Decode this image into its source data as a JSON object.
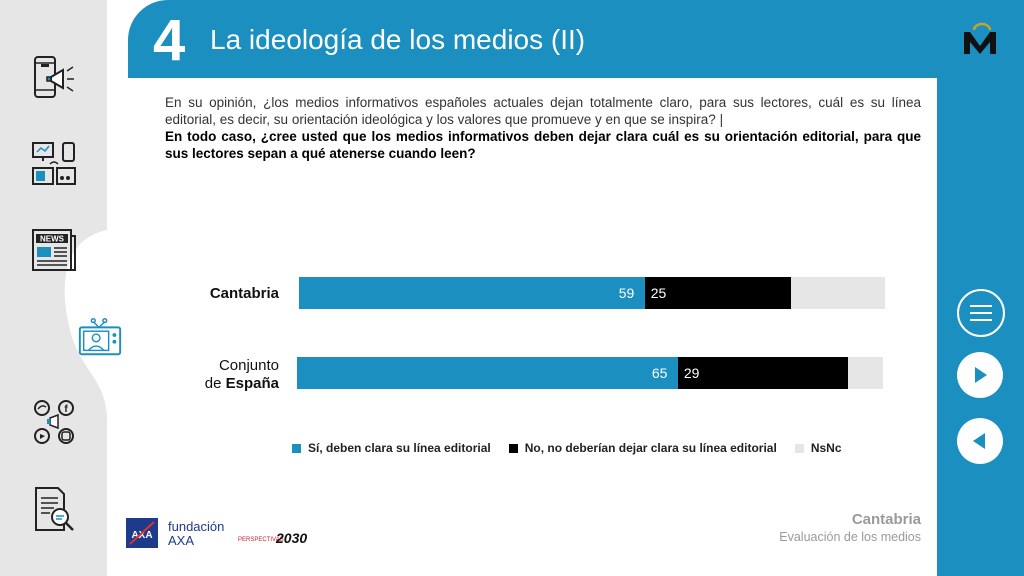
{
  "header": {
    "number": "4",
    "title": "La ideología de los medios (II)"
  },
  "question": {
    "part1": "En su opinión, ¿los medios informativos españoles actuales dejan totalmente claro, para sus lectores, cuál es su línea editorial, es decir, su orientación ideológica y los valores que promueve y en que se inspira? |",
    "part2": "En todo caso, ¿cree usted que los medios informativos deben dejar clara cuál es su orientación editorial, para que sus lectores sepan a qué atenerse cuando leen?"
  },
  "chart_data": {
    "type": "bar",
    "orientation": "horizontal",
    "stacked": true,
    "categories": [
      "Cantabria",
      "Conjunto de España"
    ],
    "series": [
      {
        "name": "Sí, deben clara su línea editorial",
        "values": [
          59,
          65
        ],
        "color": "#1a8fc0"
      },
      {
        "name": "No, no deberían dejar clara su línea editorial",
        "values": [
          25,
          29
        ],
        "color": "#000000"
      },
      {
        "name": "NsNc",
        "values": [
          16,
          6
        ],
        "color": "#e6e6e6"
      }
    ],
    "data_labels": [
      [
        "59",
        "25"
      ],
      [
        "65",
        "29"
      ]
    ],
    "xlim": [
      0,
      100
    ],
    "legend_position": "bottom"
  },
  "labels": {
    "cat1": "Cantabria",
    "cat2_line1": "Conjunto",
    "cat2_line2_prefix": "de ",
    "cat2_line2_bold": "España"
  },
  "legend": {
    "item1": "Sí, deben clara su línea editorial",
    "item2": "No, no deberían dejar clara su línea editorial",
    "item3": "NsNc"
  },
  "footer": {
    "region": "Cantabria",
    "subtitle": "Evaluación de los medios",
    "axa_line1": "fundación",
    "axa_line2": "AXA",
    "p2030_small": "PERSPECTIVAS",
    "p2030_big": "2030"
  },
  "colors": {
    "accent": "#1a8fc0",
    "no": "#000000",
    "nsnc": "#e6e6e6"
  },
  "icons": {
    "rail": [
      "mobile-megaphone-icon",
      "devices-icon",
      "newspaper-icon",
      "tv-presenter-icon",
      "social-media-icon",
      "document-search-icon"
    ],
    "nav": [
      "menu-icon",
      "next-icon",
      "previous-icon"
    ]
  }
}
